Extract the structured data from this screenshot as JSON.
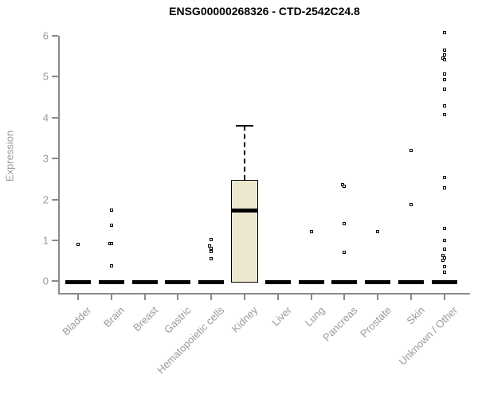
{
  "chart_data": {
    "type": "box",
    "title": "ENSG00000268326 - CTD-2542C24.8",
    "xlabel": "",
    "ylabel": "Expression",
    "ylim": [
      0,
      6
    ],
    "yticks": [
      0,
      1,
      2,
      3,
      4,
      5,
      6
    ],
    "grid": false,
    "legend": "none",
    "point_style": "open-square",
    "categories": [
      "Bladder",
      "Brain",
      "Breast",
      "Gastric",
      "Hematopoietic cells",
      "Kidney",
      "Liver",
      "Lung",
      "Pancreas",
      "Prostate",
      "Skin",
      "Unknown / Other"
    ],
    "boxes": [
      {
        "category": "Bladder",
        "q1": 0,
        "median": 0,
        "q3": 0,
        "whisker_low": 0,
        "whisker_high": 0,
        "outliers": [
          0.9
        ],
        "jitter": [
          0
        ]
      },
      {
        "category": "Brain",
        "q1": 0,
        "median": 0,
        "q3": 0,
        "whisker_low": 0,
        "whisker_high": 0,
        "outliers": [
          1.74,
          1.37,
          0.93,
          0.93,
          0.38
        ],
        "jitter": [
          0,
          0,
          -2,
          0,
          0
        ]
      },
      {
        "category": "Breast",
        "q1": 0,
        "median": 0,
        "q3": 0,
        "whisker_low": 0,
        "whisker_high": 0,
        "outliers": [],
        "jitter": []
      },
      {
        "category": "Gastric",
        "q1": 0,
        "median": 0,
        "q3": 0,
        "whisker_low": 0,
        "whisker_high": 0,
        "outliers": [],
        "jitter": []
      },
      {
        "category": "Hematopoietic cells",
        "q1": 0,
        "median": 0,
        "q3": 0,
        "whisker_low": 0,
        "whisker_high": 0,
        "outliers": [
          1.02,
          0.87,
          0.8,
          0.73,
          0.55
        ],
        "jitter": [
          0,
          -2,
          0,
          0,
          0
        ]
      },
      {
        "category": "Kidney",
        "q1": 0,
        "median": 1.72,
        "q3": 2.48,
        "whisker_low": 0,
        "whisker_high": 3.8,
        "outliers": [],
        "jitter": []
      },
      {
        "category": "Liver",
        "q1": 0,
        "median": 0,
        "q3": 0,
        "whisker_low": 0,
        "whisker_high": 0,
        "outliers": [],
        "jitter": []
      },
      {
        "category": "Lung",
        "q1": 0,
        "median": 0,
        "q3": 0,
        "whisker_low": 0,
        "whisker_high": 0,
        "outliers": [
          1.22
        ],
        "jitter": [
          0
        ]
      },
      {
        "category": "Pancreas",
        "q1": 0,
        "median": 0,
        "q3": 0,
        "whisker_low": 0,
        "whisker_high": 0,
        "outliers": [
          2.36,
          2.33,
          1.41,
          0.7
        ],
        "jitter": [
          -2,
          0,
          0,
          0
        ]
      },
      {
        "category": "Prostate",
        "q1": 0,
        "median": 0,
        "q3": 0,
        "whisker_low": 0,
        "whisker_high": 0,
        "outliers": [
          1.22
        ],
        "jitter": [
          0
        ]
      },
      {
        "category": "Skin",
        "q1": 0,
        "median": 0,
        "q3": 0,
        "whisker_low": 0,
        "whisker_high": 0,
        "outliers": [
          3.19,
          1.87
        ],
        "jitter": [
          0,
          0
        ]
      },
      {
        "category": "Unknown / Other",
        "q1": 0,
        "median": 0,
        "q3": 0,
        "whisker_low": 0,
        "whisker_high": 0,
        "outliers": [
          6.08,
          5.64,
          5.54,
          5.46,
          5.41,
          5.07,
          4.93,
          4.69,
          4.28,
          4.07,
          2.53,
          2.28,
          1.3,
          1.0,
          0.79,
          0.62,
          0.57,
          0.52,
          0.35,
          0.22
        ],
        "jitter": [
          0,
          0,
          0,
          -2,
          0,
          0,
          0,
          0,
          0,
          0,
          0,
          0,
          0,
          0,
          0,
          -2,
          0,
          -2,
          0,
          0
        ]
      }
    ],
    "colors": {
      "background": "#ffffff",
      "title": "#000000",
      "axis": "#8a8a8a",
      "tick_label": "#9a9a9a",
      "box_fill": "#ECE7CE",
      "box_border": "#000000",
      "median": "#000000",
      "point": "#000000"
    }
  }
}
